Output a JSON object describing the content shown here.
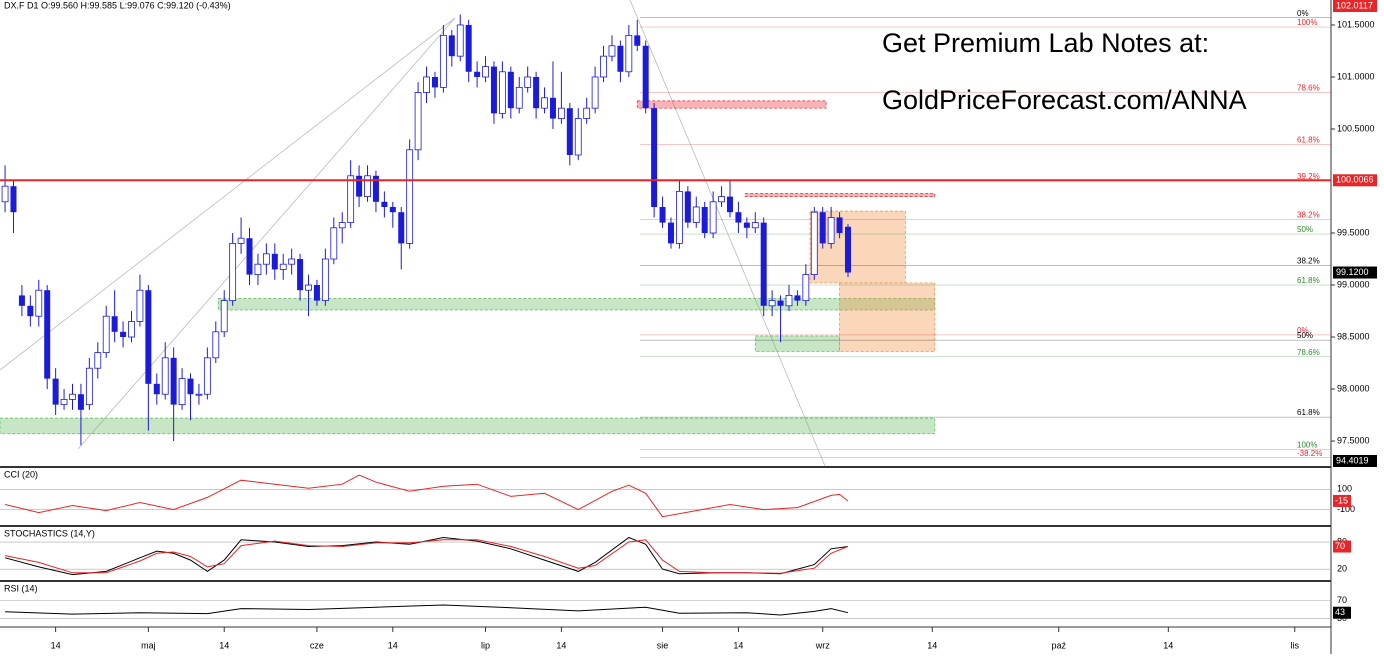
{
  "chart_data": [
    {
      "type": "candlestick",
      "title": "DX.F D1 O:99.560 H:99.585 L:99.076 C:99.120 (-0.43%)",
      "annotations": [
        "Get Premium Lab Notes at:",
        "GoldPriceForecast.com/ANNA"
      ],
      "color": "#1c1cd8",
      "open": [
        99.8,
        99.95,
        98.9,
        98.8,
        98.7,
        98.95,
        98.1,
        97.85,
        97.9,
        97.95,
        97.85,
        98.2,
        98.35,
        98.7,
        98.55,
        98.5,
        98.65,
        98.95,
        98.05,
        97.95,
        98.3,
        97.85,
        98.1,
        97.95,
        97.95,
        98.3,
        98.55,
        98.85,
        99.4,
        99.45,
        99.1,
        99.2,
        99.3,
        99.15,
        99.2,
        99.25,
        98.95,
        99.0,
        98.85,
        99.25,
        99.55,
        99.6,
        100.05,
        99.85,
        100.05,
        99.8,
        99.75,
        99.7,
        99.4,
        100.3,
        100.85,
        101.0,
        100.9,
        101.4,
        101.2,
        101.5,
        101.05,
        101.0,
        101.1,
        100.65,
        101.05,
        100.7,
        100.9,
        101.0,
        100.7,
        100.8,
        100.6,
        100.7,
        100.25,
        100.6,
        100.7,
        101.0,
        101.2,
        101.3,
        101.05,
        101.4,
        101.3,
        100.7,
        99.75,
        99.6,
        99.4,
        99.9,
        99.6,
        99.75,
        99.5,
        99.8,
        99.85,
        99.7,
        99.6,
        99.55,
        99.6,
        98.8,
        98.85,
        98.8,
        98.9,
        98.85,
        99.1,
        99.7,
        99.4,
        99.65,
        99.56
      ],
      "high": [
        100.15,
        100.0,
        99.0,
        98.9,
        99.05,
        99.0,
        98.2,
        98.0,
        98.05,
        98.05,
        98.3,
        98.45,
        98.8,
        98.95,
        98.65,
        98.75,
        99.1,
        99.0,
        98.15,
        98.45,
        98.4,
        98.2,
        98.15,
        98.05,
        98.4,
        98.65,
        98.95,
        99.5,
        99.65,
        99.55,
        99.3,
        99.4,
        99.4,
        99.3,
        99.35,
        99.3,
        99.1,
        99.05,
        99.35,
        99.65,
        99.7,
        100.2,
        100.15,
        100.15,
        100.1,
        99.9,
        99.8,
        99.75,
        100.4,
        100.95,
        101.1,
        101.05,
        101.5,
        101.45,
        101.6,
        101.55,
        101.15,
        101.2,
        101.15,
        101.15,
        101.1,
        101.0,
        101.1,
        101.05,
        100.9,
        101.15,
        101.05,
        100.75,
        100.7,
        100.8,
        101.1,
        101.3,
        101.4,
        101.35,
        101.5,
        101.55,
        101.35,
        100.75,
        99.85,
        99.65,
        100.0,
        99.95,
        99.85,
        99.8,
        99.9,
        99.95,
        100.0,
        99.8,
        99.65,
        99.7,
        99.65,
        98.95,
        98.9,
        99.0,
        98.95,
        99.2,
        99.75,
        99.75,
        99.75,
        99.7,
        99.585
      ],
      "low": [
        99.7,
        99.5,
        98.7,
        98.6,
        98.6,
        98.0,
        97.75,
        97.8,
        97.8,
        97.46,
        97.8,
        98.1,
        98.3,
        98.45,
        98.4,
        98.45,
        98.6,
        97.6,
        97.85,
        97.9,
        97.5,
        97.8,
        97.7,
        97.85,
        97.9,
        98.25,
        98.5,
        98.8,
        99.3,
        99.0,
        99.0,
        99.1,
        99.05,
        99.05,
        99.1,
        98.85,
        98.7,
        98.8,
        98.8,
        99.2,
        99.4,
        99.55,
        99.75,
        99.8,
        99.7,
        99.65,
        99.55,
        99.15,
        99.35,
        100.2,
        100.75,
        100.8,
        100.85,
        101.1,
        101.15,
        100.95,
        100.9,
        100.95,
        100.55,
        100.6,
        100.6,
        100.65,
        100.85,
        100.6,
        100.65,
        100.5,
        100.55,
        100.15,
        100.2,
        100.55,
        100.65,
        100.95,
        101.15,
        100.95,
        101.0,
        101.25,
        100.65,
        99.65,
        99.55,
        99.35,
        99.35,
        99.55,
        99.55,
        99.45,
        99.45,
        99.75,
        99.65,
        99.5,
        99.45,
        99.5,
        98.7,
        98.7,
        98.45,
        98.75,
        98.8,
        98.8,
        99.05,
        99.35,
        99.35,
        99.45,
        99.076
      ],
      "close": [
        99.95,
        99.7,
        98.8,
        98.7,
        98.95,
        98.1,
        97.85,
        97.9,
        97.95,
        97.8,
        98.2,
        98.35,
        98.7,
        98.55,
        98.5,
        98.65,
        98.95,
        98.05,
        97.95,
        98.3,
        97.85,
        98.1,
        97.95,
        97.95,
        98.3,
        98.55,
        98.85,
        99.4,
        99.45,
        99.1,
        99.2,
        99.3,
        99.15,
        99.2,
        99.25,
        98.95,
        99.0,
        98.85,
        99.25,
        99.55,
        99.6,
        100.05,
        99.85,
        100.05,
        99.8,
        99.75,
        99.7,
        99.4,
        100.3,
        100.85,
        101.0,
        100.9,
        101.4,
        101.2,
        101.5,
        101.05,
        101.0,
        101.1,
        100.65,
        101.05,
        100.7,
        100.9,
        101.0,
        100.7,
        100.8,
        100.6,
        100.7,
        100.25,
        100.6,
        100.7,
        101.0,
        101.2,
        101.3,
        101.05,
        101.4,
        101.3,
        100.7,
        99.75,
        99.6,
        99.4,
        99.9,
        99.6,
        99.75,
        99.5,
        99.8,
        99.85,
        99.7,
        99.6,
        99.55,
        99.6,
        98.8,
        98.85,
        98.8,
        98.9,
        98.85,
        99.1,
        99.7,
        99.4,
        99.65,
        99.5,
        99.12
      ],
      "xlim": [
        -0.6,
        157.3
      ],
      "xticks": [
        {
          "value": 6,
          "label": "14"
        },
        {
          "value": 17,
          "label": "maj"
        },
        {
          "value": 26,
          "label": "14"
        },
        {
          "value": 37,
          "label": "cze"
        },
        {
          "value": 46,
          "label": "14"
        },
        {
          "value": 57,
          "label": "lip"
        },
        {
          "value": 66,
          "label": "14"
        },
        {
          "value": 78,
          "label": "sie"
        },
        {
          "value": 87,
          "label": "14"
        },
        {
          "value": 97,
          "label": "wrz"
        },
        {
          "value": 110,
          "label": "14"
        },
        {
          "value": 125,
          "label": "paź"
        },
        {
          "value": 138,
          "label": "14"
        },
        {
          "value": 153,
          "label": "lis"
        }
      ],
      "ylim": [
        97.26,
        101.74
      ],
      "yticks": [
        {
          "value": 97.5,
          "label": "97.5000"
        },
        {
          "value": 98.0,
          "label": "98.0000"
        },
        {
          "value": 98.5,
          "label": "98.5000"
        },
        {
          "value": 99.0,
          "label": "99.0000"
        },
        {
          "value": 99.5,
          "label": "99.5000"
        },
        {
          "value": 100.5,
          "label": "100.5000"
        },
        {
          "value": 101.0,
          "label": "101.0000"
        },
        {
          "value": 101.5,
          "label": "101.5000"
        }
      ],
      "levels": [
        {
          "label": "0%",
          "value": 101.57,
          "color": "#000000"
        },
        {
          "label": "100%",
          "value": 101.48,
          "color": "#e8262a"
        },
        {
          "label": "78.6%",
          "value": 100.85,
          "color": "#e8262a"
        },
        {
          "label": "61.8%",
          "value": 100.35,
          "color": "#e8262a"
        },
        {
          "label": "39.2%",
          "value": 100.0,
          "color": "#e8262a"
        },
        {
          "label": "38.2%",
          "value": 99.63,
          "color": "#e8262a"
        },
        {
          "label": "50%",
          "value": 99.49,
          "color": "#2e8b2e"
        },
        {
          "label": "38.2%",
          "value": 99.19,
          "color": "#000000"
        },
        {
          "label": "61.8%",
          "value": 99.0,
          "color": "#2e8b2e"
        },
        {
          "label": "0%",
          "value": 98.52,
          "color": "#e8262a"
        },
        {
          "label": "50%",
          "value": 98.47,
          "color": "#000000"
        },
        {
          "label": "78.6%",
          "value": 98.31,
          "color": "#2e8b2e"
        },
        {
          "label": "61.8%",
          "value": 97.73,
          "color": "#000000"
        },
        {
          "label": "100%",
          "value": 97.42,
          "color": "#2e8b2e"
        },
        {
          "label": "-38.2%",
          "value": 97.34,
          "color": "#e8262a"
        }
      ],
      "zones": [
        {
          "x_range": [
            25.3,
            110.3
          ],
          "y_range": [
            98.76,
            98.87
          ],
          "color": "#5cb85c"
        },
        {
          "x_range": [
            -0.6,
            110.3
          ],
          "y_range": [
            97.57,
            97.72
          ],
          "color": "#5cb85c"
        },
        {
          "x_range": [
            89,
            99
          ],
          "y_range": [
            98.36,
            98.51
          ],
          "color": "#5cb85c"
        },
        {
          "x_range": [
            95.5,
            106.8
          ],
          "y_range": [
            99.02,
            99.71
          ],
          "color": "#f08a3c"
        },
        {
          "x_range": [
            99,
            110.3
          ],
          "y_range": [
            98.36,
            99.02
          ],
          "color": "#f08a3c"
        },
        {
          "x_range": [
            75,
            97.4
          ],
          "y_range": [
            100.7,
            100.77
          ],
          "color": "#e8262a"
        },
        {
          "x_range": [
            87.8,
            110.3
          ],
          "y_range": [
            99.85,
            99.88
          ],
          "color": "#e8262a"
        }
      ],
      "price_markers": [
        {
          "value": 102.0117,
          "label": "102.0117",
          "color": "#e8262a",
          "line": false
        },
        {
          "value": 100.0066,
          "label": "100.0066",
          "color": "#e8262a",
          "line": true
        },
        {
          "value": 99.12,
          "label": "99.1200",
          "color": "#000000",
          "line": false
        },
        {
          "value": 94.4019,
          "label": "94.4019",
          "color": "#000000",
          "line": false
        }
      ]
    },
    {
      "type": "line",
      "title": "CCI (20)",
      "x": [
        0,
        4,
        8,
        12,
        16,
        20,
        24,
        28,
        32,
        36,
        40,
        42,
        44,
        48,
        52,
        56,
        60,
        64,
        68,
        72,
        74,
        76,
        78,
        82,
        86,
        90,
        94,
        98,
        99,
        100
      ],
      "series": [
        {
          "color": "#e8262a",
          "values": [
            -50,
            -130,
            -60,
            -110,
            -30,
            -100,
            20,
            190,
            150,
            110,
            150,
            240,
            170,
            80,
            130,
            150,
            30,
            60,
            -100,
            80,
            140,
            60,
            -170,
            -110,
            -50,
            -100,
            -80,
            40,
            50,
            -15
          ]
        }
      ],
      "ylim": [
        -252,
        300
      ],
      "yticks": [
        -100,
        100
      ],
      "marker": {
        "value": -15,
        "color": "#e8262a"
      }
    },
    {
      "type": "line",
      "title": "STOCHASTICS (14,Y)",
      "x": [
        0,
        4,
        8,
        12,
        16,
        18,
        20,
        22,
        24,
        26,
        28,
        32,
        36,
        40,
        44,
        48,
        52,
        56,
        60,
        64,
        68,
        70,
        74,
        76,
        78,
        80,
        84,
        88,
        92,
        96,
        98,
        100
      ],
      "series": [
        {
          "color": "#000000",
          "values": [
            45,
            25,
            8,
            15,
            45,
            60,
            55,
            40,
            15,
            40,
            85,
            80,
            70,
            72,
            80,
            75,
            90,
            82,
            65,
            40,
            15,
            35,
            90,
            75,
            20,
            10,
            12,
            12,
            10,
            30,
            65,
            70
          ]
        },
        {
          "color": "#e8262a",
          "values": [
            50,
            35,
            12,
            12,
            38,
            55,
            58,
            48,
            25,
            32,
            72,
            82,
            72,
            70,
            78,
            78,
            85,
            85,
            70,
            48,
            22,
            28,
            80,
            85,
            40,
            15,
            12,
            12,
            11,
            22,
            55,
            70
          ]
        }
      ],
      "ylim": [
        -4,
        111
      ],
      "yticks": [
        20,
        80
      ],
      "marker": {
        "value": 70,
        "color": "#e8262a"
      }
    },
    {
      "type": "line",
      "title": "RSI (14)",
      "x": [
        0,
        8,
        16,
        24,
        28,
        36,
        44,
        52,
        60,
        68,
        76,
        80,
        88,
        92,
        96,
        98,
        100
      ],
      "series": [
        {
          "color": "#000000",
          "values": [
            45,
            40,
            43,
            41,
            52,
            50,
            55,
            60,
            54,
            47,
            55,
            42,
            43,
            38,
            46,
            52,
            43
          ]
        }
      ],
      "ylim": [
        14,
        108
      ],
      "yticks": [
        30,
        70
      ],
      "marker": {
        "value": 43,
        "color": "#000000"
      }
    }
  ]
}
